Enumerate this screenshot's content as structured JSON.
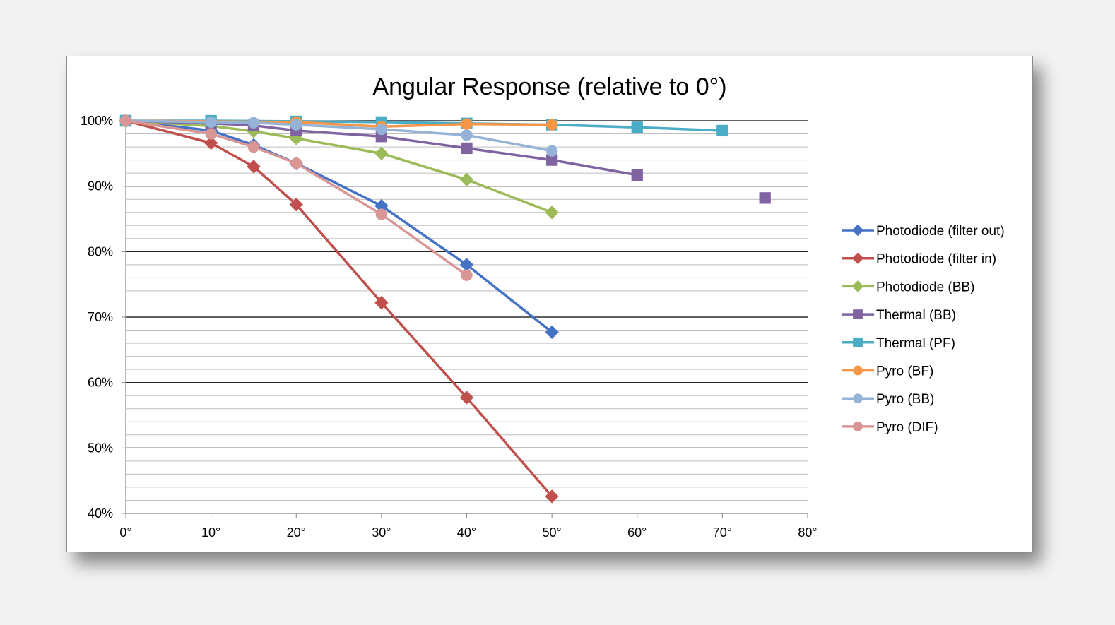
{
  "chart_data": {
    "type": "line",
    "title": "Angular Response (relative to 0°)",
    "xlabel": "",
    "ylabel": "",
    "xlim": [
      0,
      80
    ],
    "ylim": [
      40,
      100
    ],
    "x_ticks": [
      "0°",
      "10°",
      "20°",
      "30°",
      "40°",
      "50°",
      "60°",
      "70°",
      "80°"
    ],
    "y_ticks": [
      "40%",
      "50%",
      "60%",
      "70%",
      "80%",
      "90%",
      "100%"
    ],
    "y_major_step": 10,
    "y_minor_step": 2,
    "grid": true,
    "legend_position": "right",
    "series": [
      {
        "name": "Photodiode (filter out)",
        "color": "#4472c4",
        "marker": "diamond",
        "points": [
          [
            0,
            100
          ],
          [
            10,
            98.5
          ],
          [
            15,
            96.3
          ],
          [
            20,
            93.5
          ],
          [
            30,
            87
          ],
          [
            40,
            78
          ],
          [
            50,
            67.7
          ]
        ]
      },
      {
        "name": "Photodiode (filter in)",
        "color": "#c0504d",
        "marker": "diamond",
        "points": [
          [
            0,
            100
          ],
          [
            10,
            96.6
          ],
          [
            15,
            93
          ],
          [
            20,
            87.2
          ],
          [
            30,
            72.2
          ],
          [
            40,
            57.7
          ],
          [
            50,
            42.6
          ]
        ]
      },
      {
        "name": "Photodiode (BB)",
        "color": "#9bbb59",
        "marker": "diamond",
        "points": [
          [
            0,
            100
          ],
          [
            10,
            99.2
          ],
          [
            15,
            98.4
          ],
          [
            20,
            97.3
          ],
          [
            30,
            95
          ],
          [
            40,
            91
          ],
          [
            50,
            86
          ]
        ]
      },
      {
        "name": "Thermal (BB)",
        "color": "#8064a2",
        "marker": "square",
        "points": [
          [
            0,
            100
          ],
          [
            10,
            99.6
          ],
          [
            15,
            99.3
          ],
          [
            20,
            98.5
          ],
          [
            30,
            97.6
          ],
          [
            40,
            95.8
          ],
          [
            50,
            94
          ],
          [
            60,
            91.7
          ],
          [
            75,
            88.2
          ]
        ],
        "break_before_last": true
      },
      {
        "name": "Thermal (PF)",
        "color": "#4bacc6",
        "marker": "square",
        "points": [
          [
            0,
            100
          ],
          [
            10,
            100
          ],
          [
            20,
            99.9
          ],
          [
            30,
            99.8
          ],
          [
            40,
            99.6
          ],
          [
            50,
            99.4
          ],
          [
            60,
            99
          ],
          [
            70,
            98.5
          ]
        ]
      },
      {
        "name": "Pyro (BF)",
        "color": "#f79646",
        "marker": "circle",
        "points": [
          [
            0,
            100
          ],
          [
            20,
            99.8
          ],
          [
            30,
            99.1
          ],
          [
            40,
            99.5
          ],
          [
            50,
            99.4
          ]
        ]
      },
      {
        "name": "Pyro (BB)",
        "color": "#95b3d7",
        "marker": "circle",
        "points": [
          [
            0,
            100
          ],
          [
            10,
            99.8
          ],
          [
            15,
            99.7
          ],
          [
            20,
            99.4
          ],
          [
            30,
            98.7
          ],
          [
            40,
            97.8
          ],
          [
            50,
            95.4
          ]
        ]
      },
      {
        "name": "Pyro (DIF)",
        "color": "#da9694",
        "marker": "circle",
        "points": [
          [
            0,
            100
          ],
          [
            10,
            98
          ],
          [
            15,
            96
          ],
          [
            20,
            93.5
          ],
          [
            30,
            85.7
          ],
          [
            40,
            76.4
          ]
        ]
      }
    ]
  }
}
